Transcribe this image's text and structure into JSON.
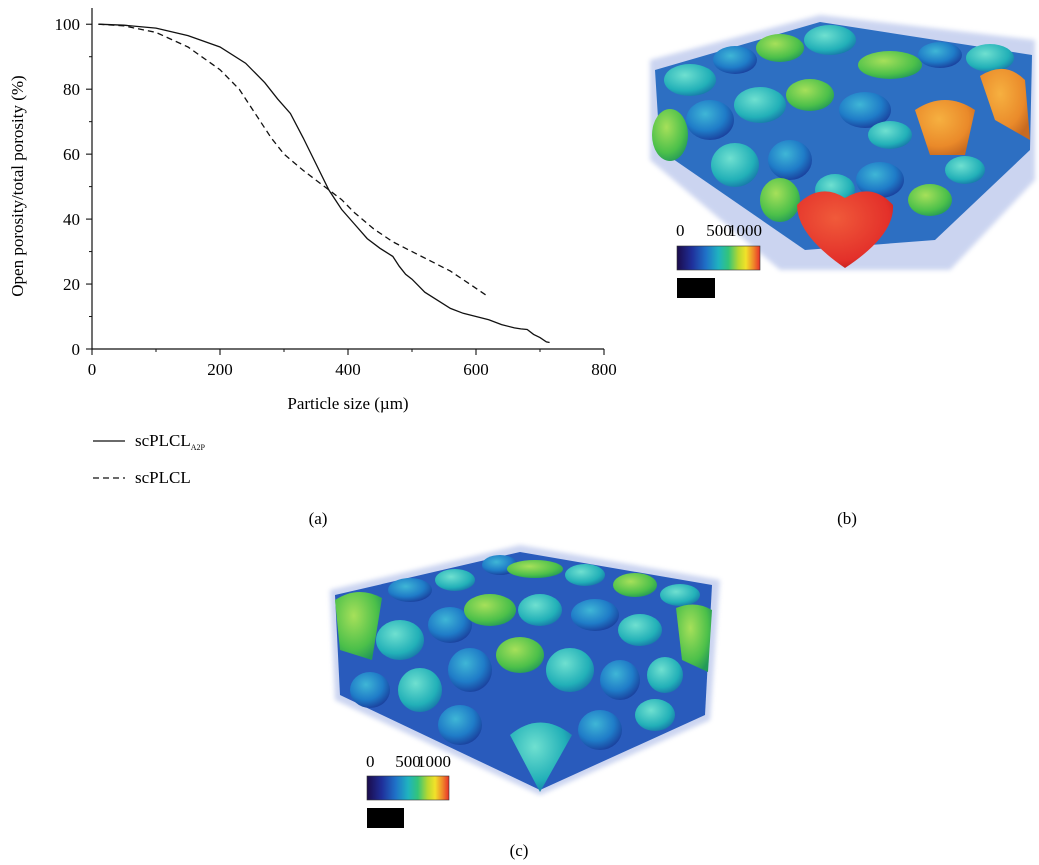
{
  "chart_data": {
    "type": "line",
    "xlabel": "Particle size (µm)",
    "ylabel": "Open porosity/total porosity (%)",
    "xlim": [
      0,
      800
    ],
    "ylim": [
      0,
      105
    ],
    "xticks": [
      0,
      200,
      400,
      600,
      800
    ],
    "yticks": [
      0,
      20,
      40,
      60,
      80,
      100
    ],
    "xtick_labels": [
      "0",
      "200",
      "400",
      "600",
      "800"
    ],
    "ytick_labels": [
      "0",
      "20",
      "40",
      "60",
      "80",
      "100"
    ],
    "grid": false,
    "legend_position": "below",
    "series": [
      {
        "name": "scPLCL",
        "name_subscript": "A2P",
        "style": "solid",
        "x": [
          10,
          50,
          100,
          150,
          200,
          240,
          270,
          290,
          310,
          330,
          350,
          370,
          390,
          410,
          430,
          450,
          470,
          480,
          490,
          500,
          510,
          520,
          540,
          560,
          580,
          600,
          620,
          640,
          660,
          670,
          680,
          690,
          700,
          710,
          715
        ],
        "y": [
          100,
          99.7,
          98.8,
          96.5,
          93,
          88,
          82,
          77,
          72.5,
          65,
          57,
          49,
          43,
          38.5,
          34,
          31,
          28.5,
          25.5,
          23,
          21.5,
          19.5,
          17.5,
          15,
          12.5,
          11,
          10,
          9,
          7.5,
          6.5,
          6.2,
          6,
          4.5,
          3.5,
          2.2,
          2
        ]
      },
      {
        "name": "scPLCL",
        "style": "dashed",
        "x": [
          10,
          50,
          100,
          150,
          200,
          230,
          260,
          280,
          300,
          330,
          360,
          390,
          410,
          440,
          470,
          500,
          530,
          560,
          590,
          620
        ],
        "y": [
          100,
          99.5,
          97.5,
          93,
          86,
          80,
          71,
          65,
          60,
          55,
          50.5,
          46,
          42,
          37,
          33,
          30,
          27,
          24,
          20,
          16
        ]
      }
    ]
  },
  "labels": {
    "panel_a": "(a)",
    "panel_b": "(b)",
    "panel_c": "(c)"
  },
  "colorbar_b": {
    "ticks": [
      "0",
      "500",
      "1000"
    ]
  },
  "colorbar_c": {
    "ticks": [
      "0",
      "500",
      "1000"
    ]
  },
  "colors": {
    "colormap": [
      "#1b0b4a",
      "#1f2f9a",
      "#1f72c8",
      "#1fb3c0",
      "#33c47a",
      "#b8d830",
      "#f1e22a",
      "#f08a2a",
      "#e8302a"
    ],
    "line": "#111111"
  }
}
